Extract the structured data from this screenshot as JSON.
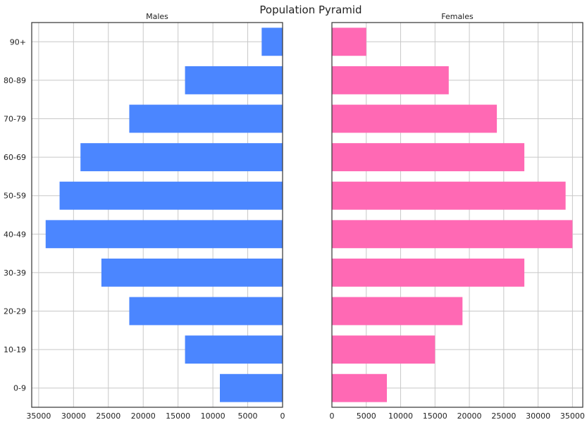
{
  "chart_data": {
    "type": "bar",
    "title": "Population Pyramid",
    "categories": [
      "0-9",
      "10-19",
      "20-29",
      "30-39",
      "40-49",
      "50-59",
      "60-69",
      "70-79",
      "80-89",
      "90+"
    ],
    "xticks_male": [
      "35000",
      "30000",
      "25000",
      "20000",
      "15000",
      "10000",
      "5000",
      "0"
    ],
    "xticks_female": [
      "0",
      "5000",
      "10000",
      "15000",
      "20000",
      "25000",
      "30000",
      "35000"
    ],
    "grid": true,
    "panels": [
      {
        "name": "Males",
        "direction": "leftward",
        "color": "#4b86ff",
        "xlim": [
          0,
          36000
        ],
        "values": [
          9000,
          14000,
          22000,
          26000,
          34000,
          32000,
          29000,
          22000,
          14000,
          3000
        ]
      },
      {
        "name": "Females",
        "direction": "rightward",
        "color": "#ff69b4",
        "xlim": [
          0,
          36500
        ],
        "values": [
          8000,
          15000,
          19000,
          28000,
          35000,
          34000,
          28000,
          24000,
          17000,
          5000
        ]
      }
    ]
  }
}
